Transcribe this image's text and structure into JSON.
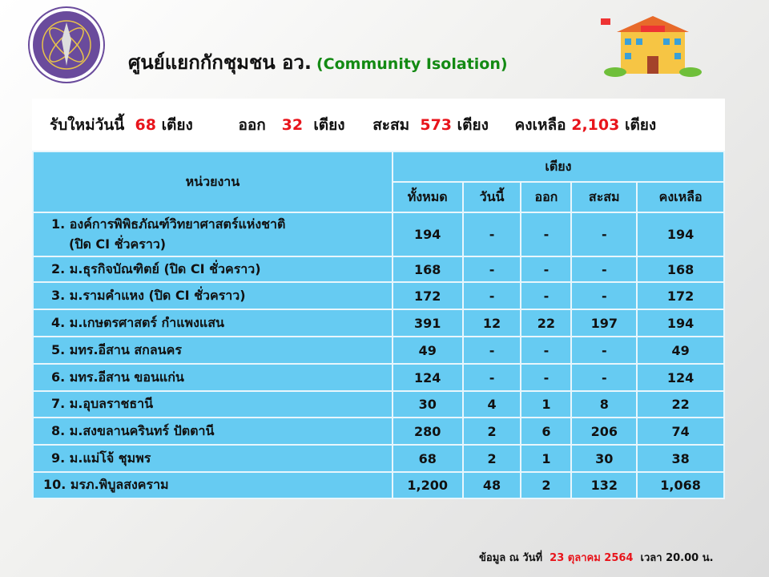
{
  "header": {
    "title": "ศูนย์แยกกักชุมชน อว.",
    "title_en": "(Community  Isolation)",
    "logo": "ministry-seal-logo",
    "illustration": "community-isolation-building"
  },
  "summary": {
    "new_label": "รับใหม่วันนี้",
    "new_value": "68",
    "out_label": "ออก",
    "out_value": "32",
    "cum_label": "สะสม",
    "cum_value": "573",
    "remain_label": "คงเหลือ",
    "remain_value": "2,103",
    "unit": "เตียง"
  },
  "table": {
    "col_unit": "หน่วยงาน",
    "col_beds": "เตียง",
    "sub": [
      "ทั้งหมด",
      "วันนี้",
      "ออก",
      "สะสม",
      "คงเหลือ"
    ],
    "rows": [
      {
        "name": "1. องค์การพิพิธภัณฑ์วิทยาศาสตร์แห่งชาติ",
        "name2": "(ปิด CI ชั่วคราว)",
        "v": [
          "194",
          "-",
          "-",
          "-",
          "194"
        ]
      },
      {
        "name": "2. ม.ธุรกิจบัณฑิตย์ (ปิด CI ชั่วคราว)",
        "v": [
          "168",
          "-",
          "-",
          "-",
          "168"
        ]
      },
      {
        "name": "3. ม.รามคำแหง  (ปิด CI ชั่วคราว)",
        "v": [
          "172",
          "-",
          "-",
          "-",
          "172"
        ]
      },
      {
        "name": "4. ม.เกษตรศาสตร์ กำแพงแสน",
        "v": [
          "391",
          "12",
          "22",
          "197",
          "194"
        ]
      },
      {
        "name": "5. มทร.อีสาน สกลนคร",
        "v": [
          "49",
          "-",
          "-",
          "-",
          "49"
        ]
      },
      {
        "name": "6. มทร.อีสาน ขอนแก่น",
        "v": [
          "124",
          "-",
          "-",
          "-",
          "124"
        ]
      },
      {
        "name": "7. ม.อุบลราชธานี",
        "v": [
          "30",
          "4",
          "1",
          "8",
          "22"
        ]
      },
      {
        "name": "8. ม.สงขลานครินทร์ ปัตตานี",
        "v": [
          "280",
          "2",
          "6",
          "206",
          "74"
        ]
      },
      {
        "name": "9. ม.แม่โจ้  ชุมพร",
        "v": [
          "68",
          "2",
          "1",
          "30",
          "38"
        ]
      },
      {
        "name": "10. มรภ.พิบูลสงคราม",
        "v": [
          "1,200",
          "48",
          "2",
          "132",
          "1,068"
        ]
      }
    ]
  },
  "footer": {
    "prefix": "ข้อมูล ณ วันที่",
    "date": "23  ตุลาคม 2564",
    "suffix": "เวลา  20.00 น."
  }
}
